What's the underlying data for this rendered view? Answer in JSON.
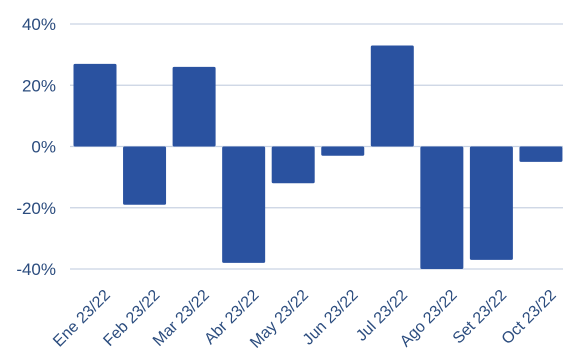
{
  "chart_data": {
    "type": "bar",
    "categories": [
      "Ene 23/22",
      "Feb 23/22",
      "Mar 23/22",
      "Abr 23/22",
      "May 23/22",
      "Jun 23/22",
      "Jul 23/22",
      "Ago 23/22",
      "Set 23/22",
      "Oct 23/22"
    ],
    "values": [
      27,
      -19,
      26,
      -38,
      -12,
      -3,
      33,
      -40,
      -37,
      -5
    ],
    "yticks": [
      "40%",
      "20%",
      "0%",
      "-20%",
      "-40%"
    ],
    "ylim": [
      -40,
      40
    ],
    "grid": true,
    "bar_color": "#2a52a0",
    "text_color": "#2b4c7e",
    "title": "",
    "xlabel": "",
    "ylabel": ""
  }
}
